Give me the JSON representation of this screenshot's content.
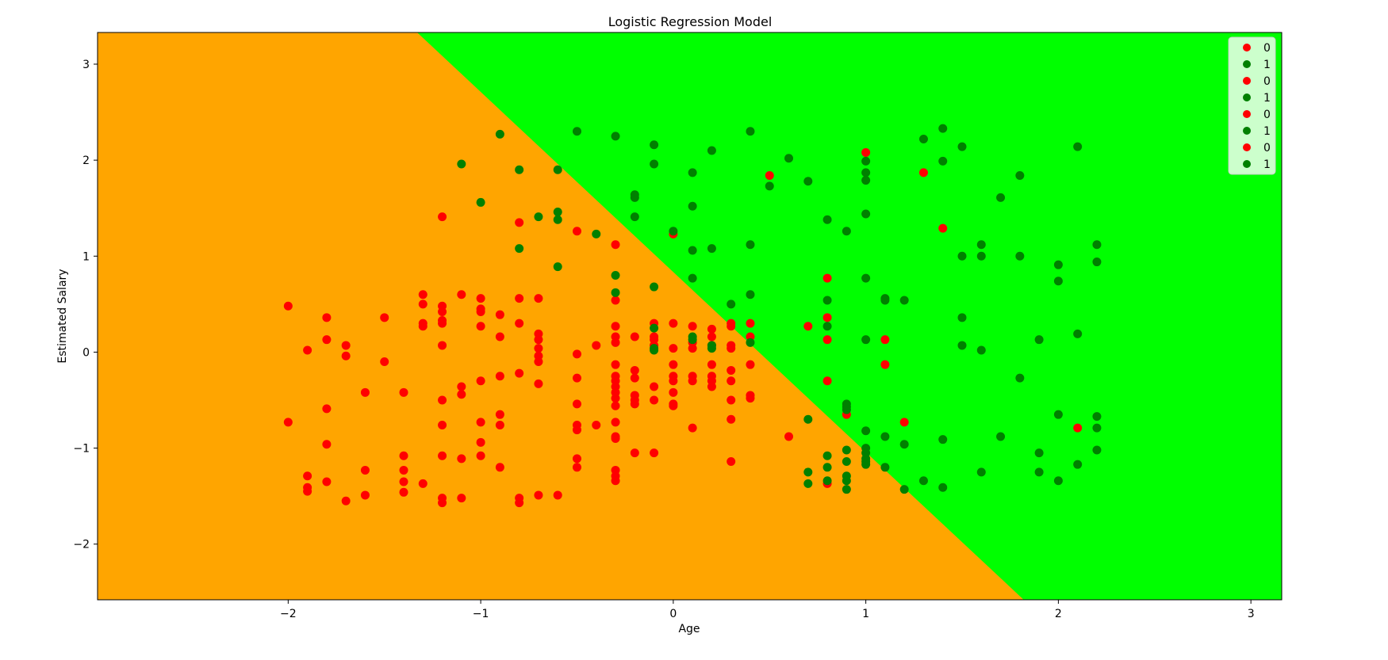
{
  "chart_data": {
    "type": "scatter",
    "title": "Logistic Regression Model",
    "xlabel": "Age",
    "ylabel": "Estimated Salary",
    "xlim": [
      -2.99,
      3.16
    ],
    "ylim": [
      -2.58,
      3.33
    ],
    "xticks": [
      -2,
      -1,
      0,
      1,
      2,
      3
    ],
    "yticks": [
      -2,
      -1,
      0,
      1,
      2,
      3
    ],
    "tick_labels_x": [
      "−2",
      "−1",
      "0",
      "1",
      "2",
      "3"
    ],
    "tick_labels_y": [
      "−2",
      "−1",
      "0",
      "1",
      "2",
      "3"
    ],
    "grid": false,
    "legend_position": "top-right",
    "region_colors": {
      "class_0": "#ffa500",
      "class_1": "#00ff00"
    },
    "decision_boundary": {
      "points": [
        [
          -1.33,
          3.33
        ],
        [
          1.82,
          -2.58
        ]
      ]
    },
    "class_colors": {
      "0": "#ff0000",
      "1": "#008000"
    },
    "legend_entries": [
      {
        "label": "0",
        "color": "#ff0000"
      },
      {
        "label": "1",
        "color": "#008000"
      },
      {
        "label": "0",
        "color": "#ff0000"
      },
      {
        "label": "1",
        "color": "#008000"
      },
      {
        "label": "0",
        "color": "#ff0000"
      },
      {
        "label": "1",
        "color": "#008000"
      },
      {
        "label": "0",
        "color": "#ff0000"
      },
      {
        "label": "1",
        "color": "#008000"
      }
    ],
    "series": [
      {
        "name": "0",
        "color": "#ff0000",
        "points": [
          [
            -2.0,
            0.48
          ],
          [
            -2.0,
            -0.73
          ],
          [
            -1.9,
            0.02
          ],
          [
            -1.9,
            -1.29
          ],
          [
            -1.9,
            -1.41
          ],
          [
            -1.9,
            -1.45
          ],
          [
            -1.8,
            0.36
          ],
          [
            -1.8,
            0.13
          ],
          [
            -1.8,
            -0.59
          ],
          [
            -1.8,
            -0.96
          ],
          [
            -1.8,
            -1.35
          ],
          [
            -1.7,
            0.07
          ],
          [
            -1.7,
            -0.04
          ],
          [
            -1.7,
            -1.55
          ],
          [
            -1.6,
            -0.42
          ],
          [
            -1.6,
            -1.23
          ],
          [
            -1.6,
            -1.49
          ],
          [
            -1.5,
            0.36
          ],
          [
            -1.5,
            -0.1
          ],
          [
            -1.4,
            -0.42
          ],
          [
            -1.4,
            -1.08
          ],
          [
            -1.4,
            -1.23
          ],
          [
            -1.4,
            -1.35
          ],
          [
            -1.4,
            -1.46
          ],
          [
            -1.3,
            0.6
          ],
          [
            -1.3,
            0.5
          ],
          [
            -1.3,
            0.3
          ],
          [
            -1.3,
            0.27
          ],
          [
            -1.3,
            -1.37
          ],
          [
            -1.2,
            1.41
          ],
          [
            -1.2,
            0.48
          ],
          [
            -1.2,
            0.42
          ],
          [
            -1.2,
            0.33
          ],
          [
            -1.2,
            0.3
          ],
          [
            -1.2,
            0.07
          ],
          [
            -1.2,
            -0.5
          ],
          [
            -1.2,
            -0.76
          ],
          [
            -1.2,
            -1.08
          ],
          [
            -1.2,
            -1.52
          ],
          [
            -1.2,
            -1.57
          ],
          [
            -1.1,
            0.6
          ],
          [
            -1.1,
            -0.36
          ],
          [
            -1.1,
            -0.44
          ],
          [
            -1.1,
            -1.11
          ],
          [
            -1.1,
            -1.52
          ],
          [
            -1.0,
            0.56
          ],
          [
            -1.0,
            0.45
          ],
          [
            -1.0,
            0.42
          ],
          [
            -1.0,
            0.27
          ],
          [
            -1.0,
            -0.3
          ],
          [
            -1.0,
            -0.73
          ],
          [
            -1.0,
            -0.94
          ],
          [
            -1.0,
            -1.08
          ],
          [
            -0.9,
            0.39
          ],
          [
            -0.9,
            0.16
          ],
          [
            -0.9,
            -0.25
          ],
          [
            -0.9,
            -0.65
          ],
          [
            -0.9,
            -0.76
          ],
          [
            -0.9,
            -1.2
          ],
          [
            -0.8,
            1.35
          ],
          [
            -0.8,
            0.56
          ],
          [
            -0.8,
            0.3
          ],
          [
            -0.8,
            -0.22
          ],
          [
            -0.8,
            -1.52
          ],
          [
            -0.8,
            -1.57
          ],
          [
            -0.7,
            0.56
          ],
          [
            -0.7,
            0.19
          ],
          [
            -0.7,
            0.13
          ],
          [
            -0.7,
            0.04
          ],
          [
            -0.7,
            -0.04
          ],
          [
            -0.7,
            -0.1
          ],
          [
            -0.7,
            -0.33
          ],
          [
            -0.7,
            -1.49
          ],
          [
            -0.6,
            -1.49
          ],
          [
            -0.5,
            1.26
          ],
          [
            -0.5,
            -0.02
          ],
          [
            -0.5,
            -0.27
          ],
          [
            -0.5,
            -0.54
          ],
          [
            -0.5,
            -0.76
          ],
          [
            -0.5,
            -0.81
          ],
          [
            -0.5,
            -1.11
          ],
          [
            -0.5,
            -1.2
          ],
          [
            -0.4,
            0.07
          ],
          [
            -0.4,
            -0.76
          ],
          [
            -0.3,
            1.12
          ],
          [
            -0.3,
            0.54
          ],
          [
            -0.3,
            0.27
          ],
          [
            -0.3,
            0.16
          ],
          [
            -0.3,
            0.1
          ],
          [
            -0.3,
            -0.13
          ],
          [
            -0.3,
            -0.25
          ],
          [
            -0.3,
            -0.3
          ],
          [
            -0.3,
            -0.36
          ],
          [
            -0.3,
            -0.42
          ],
          [
            -0.3,
            -0.48
          ],
          [
            -0.3,
            -0.56
          ],
          [
            -0.3,
            -0.73
          ],
          [
            -0.3,
            -0.88
          ],
          [
            -0.3,
            -0.9
          ],
          [
            -0.3,
            -1.23
          ],
          [
            -0.3,
            -1.29
          ],
          [
            -0.3,
            -1.34
          ],
          [
            -0.2,
            0.16
          ],
          [
            -0.2,
            -0.19
          ],
          [
            -0.2,
            -0.27
          ],
          [
            -0.2,
            -0.45
          ],
          [
            -0.2,
            -0.5
          ],
          [
            -0.2,
            -0.54
          ],
          [
            -0.2,
            -1.05
          ],
          [
            -0.1,
            0.3
          ],
          [
            -0.1,
            0.16
          ],
          [
            -0.1,
            0.13
          ],
          [
            -0.1,
            0.07
          ],
          [
            -0.1,
            -0.36
          ],
          [
            -0.1,
            -0.5
          ],
          [
            -0.1,
            -1.05
          ],
          [
            0.0,
            1.23
          ],
          [
            0.0,
            0.3
          ],
          [
            0.0,
            0.04
          ],
          [
            0.0,
            -0.13
          ],
          [
            0.0,
            -0.25
          ],
          [
            0.0,
            -0.3
          ],
          [
            0.0,
            -0.42
          ],
          [
            0.0,
            -0.54
          ],
          [
            0.0,
            -0.56
          ],
          [
            0.1,
            0.27
          ],
          [
            0.1,
            0.1
          ],
          [
            0.1,
            0.04
          ],
          [
            0.1,
            -0.25
          ],
          [
            0.1,
            -0.3
          ],
          [
            0.1,
            -0.79
          ],
          [
            0.2,
            0.24
          ],
          [
            0.2,
            0.16
          ],
          [
            0.2,
            0.07
          ],
          [
            0.2,
            -0.13
          ],
          [
            0.2,
            -0.25
          ],
          [
            0.2,
            -0.3
          ],
          [
            0.2,
            -0.36
          ],
          [
            0.3,
            0.3
          ],
          [
            0.3,
            0.27
          ],
          [
            0.3,
            0.07
          ],
          [
            0.3,
            0.04
          ],
          [
            0.3,
            -0.19
          ],
          [
            0.3,
            -0.3
          ],
          [
            0.3,
            -0.5
          ],
          [
            0.3,
            -0.7
          ],
          [
            0.3,
            -1.14
          ],
          [
            0.4,
            0.3
          ],
          [
            0.4,
            0.16
          ],
          [
            0.4,
            -0.13
          ],
          [
            0.4,
            -0.45
          ],
          [
            0.4,
            -0.48
          ],
          [
            0.5,
            1.84
          ],
          [
            0.6,
            -0.88
          ],
          [
            0.7,
            0.27
          ],
          [
            0.8,
            0.77
          ],
          [
            0.8,
            0.36
          ],
          [
            0.8,
            0.13
          ],
          [
            0.8,
            -0.3
          ],
          [
            0.8,
            -1.37
          ],
          [
            0.9,
            -0.65
          ],
          [
            1.0,
            2.08
          ],
          [
            1.1,
            0.13
          ],
          [
            1.1,
            -0.13
          ],
          [
            1.2,
            -0.73
          ],
          [
            1.3,
            1.87
          ],
          [
            1.4,
            1.29
          ],
          [
            2.1,
            -0.79
          ]
        ]
      },
      {
        "name": "1",
        "color": "#008000",
        "points": [
          [
            -1.1,
            1.96
          ],
          [
            -1.0,
            1.56
          ],
          [
            -0.9,
            2.27
          ],
          [
            -0.8,
            1.9
          ],
          [
            -0.8,
            1.08
          ],
          [
            -0.7,
            1.41
          ],
          [
            -0.6,
            1.9
          ],
          [
            -0.6,
            1.46
          ],
          [
            -0.6,
            1.38
          ],
          [
            -0.6,
            0.89
          ],
          [
            -0.5,
            2.3
          ],
          [
            -0.4,
            1.23
          ],
          [
            -0.3,
            2.25
          ],
          [
            -0.3,
            0.8
          ],
          [
            -0.3,
            0.62
          ],
          [
            -0.2,
            1.64
          ],
          [
            -0.2,
            1.61
          ],
          [
            -0.2,
            1.41
          ],
          [
            -0.1,
            2.16
          ],
          [
            -0.1,
            1.96
          ],
          [
            -0.1,
            0.68
          ],
          [
            -0.1,
            0.25
          ],
          [
            -0.1,
            0.04
          ],
          [
            -0.1,
            0.02
          ],
          [
            0.0,
            1.26
          ],
          [
            0.1,
            1.87
          ],
          [
            0.1,
            1.52
          ],
          [
            0.1,
            1.06
          ],
          [
            0.1,
            0.77
          ],
          [
            0.1,
            0.16
          ],
          [
            0.1,
            0.13
          ],
          [
            0.2,
            2.1
          ],
          [
            0.2,
            1.08
          ],
          [
            0.2,
            0.07
          ],
          [
            0.2,
            0.04
          ],
          [
            0.3,
            0.5
          ],
          [
            0.4,
            2.3
          ],
          [
            0.4,
            1.12
          ],
          [
            0.4,
            0.6
          ],
          [
            0.4,
            0.1
          ],
          [
            0.5,
            1.73
          ],
          [
            0.6,
            2.02
          ],
          [
            0.7,
            1.78
          ],
          [
            0.7,
            -0.7
          ],
          [
            0.7,
            -1.25
          ],
          [
            0.7,
            -1.37
          ],
          [
            0.8,
            1.38
          ],
          [
            0.8,
            0.54
          ],
          [
            0.8,
            0.27
          ],
          [
            0.8,
            -1.08
          ],
          [
            0.8,
            -1.2
          ],
          [
            0.8,
            -1.34
          ],
          [
            0.9,
            1.26
          ],
          [
            0.9,
            -0.54
          ],
          [
            0.9,
            -0.57
          ],
          [
            0.9,
            -0.6
          ],
          [
            0.9,
            -1.02
          ],
          [
            0.9,
            -1.14
          ],
          [
            0.9,
            -1.29
          ],
          [
            0.9,
            -1.34
          ],
          [
            0.9,
            -1.43
          ],
          [
            1.0,
            1.99
          ],
          [
            1.0,
            1.87
          ],
          [
            1.0,
            1.79
          ],
          [
            1.0,
            1.44
          ],
          [
            1.0,
            0.77
          ],
          [
            1.0,
            0.13
          ],
          [
            1.0,
            -0.82
          ],
          [
            1.0,
            -1.0
          ],
          [
            1.0,
            -1.05
          ],
          [
            1.0,
            -1.11
          ],
          [
            1.0,
            -1.14
          ],
          [
            1.0,
            -1.17
          ],
          [
            1.1,
            0.56
          ],
          [
            1.1,
            0.54
          ],
          [
            1.1,
            -0.88
          ],
          [
            1.1,
            -1.2
          ],
          [
            1.2,
            0.54
          ],
          [
            1.2,
            -0.96
          ],
          [
            1.2,
            -1.43
          ],
          [
            1.3,
            2.22
          ],
          [
            1.3,
            -1.34
          ],
          [
            1.4,
            2.33
          ],
          [
            1.4,
            1.99
          ],
          [
            1.4,
            -0.91
          ],
          [
            1.4,
            -1.41
          ],
          [
            1.5,
            2.14
          ],
          [
            1.5,
            1.0
          ],
          [
            1.5,
            0.36
          ],
          [
            1.5,
            0.07
          ],
          [
            1.6,
            1.12
          ],
          [
            1.6,
            1.0
          ],
          [
            1.6,
            0.02
          ],
          [
            1.6,
            -1.25
          ],
          [
            1.7,
            1.61
          ],
          [
            1.7,
            -0.88
          ],
          [
            1.8,
            1.84
          ],
          [
            1.8,
            1.0
          ],
          [
            1.8,
            -0.27
          ],
          [
            1.9,
            0.13
          ],
          [
            1.9,
            -1.05
          ],
          [
            1.9,
            -1.25
          ],
          [
            2.0,
            0.91
          ],
          [
            2.0,
            0.74
          ],
          [
            2.0,
            -0.65
          ],
          [
            2.0,
            -1.34
          ],
          [
            2.1,
            2.14
          ],
          [
            2.1,
            0.19
          ],
          [
            2.1,
            -1.17
          ],
          [
            2.2,
            1.12
          ],
          [
            2.2,
            0.94
          ],
          [
            2.2,
            -0.67
          ],
          [
            2.2,
            -0.79
          ],
          [
            2.2,
            -1.02
          ]
        ]
      }
    ]
  }
}
